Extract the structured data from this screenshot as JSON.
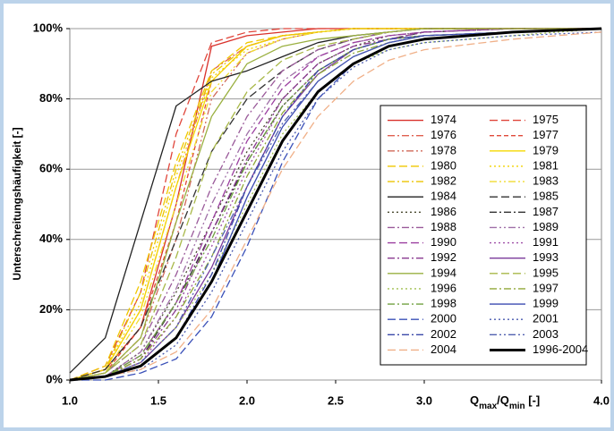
{
  "chart_data": {
    "type": "line",
    "ylabel": "Unterschreitungshäufigkeit [-]",
    "xlabel_parts": [
      "Q",
      "max",
      "/Q",
      "min",
      " [-]"
    ],
    "x": [
      1.0,
      1.2,
      1.4,
      1.6,
      1.8,
      2.0,
      2.2,
      2.4,
      2.6,
      2.8,
      3.0,
      3.5,
      4.0
    ],
    "xlim": [
      1.0,
      4.0
    ],
    "xticks": [
      {
        "value": 1.0,
        "label": "1.0"
      },
      {
        "value": 1.5,
        "label": "1.5"
      },
      {
        "value": 2.0,
        "label": "2.0"
      },
      {
        "value": 2.5,
        "label": "2.5"
      },
      {
        "value": 3.0,
        "label": "3.0"
      },
      {
        "value": 4.0,
        "label": "4.0"
      }
    ],
    "ylim": [
      0,
      100
    ],
    "yticks": [
      {
        "value": 0,
        "label": "0%"
      },
      {
        "value": 20,
        "label": "20%"
      },
      {
        "value": 40,
        "label": "40%"
      },
      {
        "value": 60,
        "label": "60%"
      },
      {
        "value": 80,
        "label": "80%"
      },
      {
        "value": 100,
        "label": "100%"
      }
    ],
    "grid": true,
    "legend": "right",
    "series": [
      {
        "name": "1974",
        "color": "#d9312b",
        "dash": "",
        "values": [
          0,
          3,
          15,
          50,
          95,
          98,
          99,
          100,
          100,
          100,
          100,
          100,
          100
        ]
      },
      {
        "name": "1975",
        "color": "#e0453a",
        "dash": "9,4",
        "values": [
          0,
          4,
          25,
          70,
          96,
          99,
          100,
          100,
          100,
          100,
          100,
          100,
          100
        ]
      },
      {
        "name": "1976",
        "color": "#e06050",
        "dash": "8,3,2,3",
        "values": [
          0,
          3,
          20,
          55,
          88,
          95,
          98,
          99,
          100,
          100,
          100,
          100,
          100
        ]
      },
      {
        "name": "1977",
        "color": "#e04a3a",
        "dash": "5,3",
        "values": [
          0,
          2,
          15,
          45,
          85,
          95,
          98,
          99,
          100,
          100,
          100,
          100,
          100
        ]
      },
      {
        "name": "1978",
        "color": "#d06a5a",
        "dash": "8,3,2,3,2,3",
        "values": [
          0,
          2,
          12,
          40,
          80,
          93,
          97,
          99,
          100,
          100,
          100,
          100,
          100
        ]
      },
      {
        "name": "1979",
        "color": "#f5d800",
        "dash": "",
        "values": [
          0,
          3,
          20,
          55,
          85,
          95,
          98,
          99,
          100,
          100,
          100,
          100,
          100
        ]
      },
      {
        "name": "1980",
        "color": "#f0c800",
        "dash": "9,4",
        "values": [
          0,
          4,
          28,
          62,
          88,
          96,
          98,
          99,
          100,
          100,
          100,
          100,
          100
        ]
      },
      {
        "name": "1981",
        "color": "#f2d400",
        "dash": "2,3",
        "values": [
          0,
          3,
          22,
          58,
          86,
          94,
          97,
          99,
          100,
          100,
          100,
          100,
          100
        ]
      },
      {
        "name": "1982",
        "color": "#ecc400",
        "dash": "8,3,2,3",
        "values": [
          0,
          3,
          25,
          60,
          87,
          95,
          98,
          99,
          100,
          100,
          100,
          100,
          100
        ]
      },
      {
        "name": "1983",
        "color": "#f0dc30",
        "dash": "8,3,2,3,2,3",
        "values": [
          0,
          2,
          18,
          50,
          82,
          93,
          97,
          99,
          100,
          100,
          100,
          100,
          100
        ]
      },
      {
        "name": "1984",
        "color": "#222222",
        "dash": "",
        "values": [
          2,
          12,
          45,
          78,
          85,
          88,
          92,
          96,
          98,
          99,
          100,
          100,
          100
        ]
      },
      {
        "name": "1985",
        "color": "#333333",
        "dash": "9,4",
        "values": [
          0,
          3,
          15,
          40,
          65,
          80,
          88,
          94,
          97,
          99,
          100,
          100,
          100
        ]
      },
      {
        "name": "1986",
        "color": "#4a4a30",
        "dash": "2,3",
        "values": [
          0,
          1,
          8,
          25,
          45,
          65,
          80,
          90,
          95,
          98,
          99,
          100,
          100
        ]
      },
      {
        "name": "1987",
        "color": "#333333",
        "dash": "8,3,2,3",
        "values": [
          0,
          1,
          6,
          22,
          42,
          62,
          78,
          88,
          94,
          97,
          99,
          100,
          100
        ]
      },
      {
        "name": "1988",
        "color": "#9a5a9a",
        "dash": "8,3,2,3",
        "values": [
          0,
          2,
          10,
          30,
          55,
          75,
          88,
          94,
          97,
          99,
          100,
          100,
          100
        ]
      },
      {
        "name": "1989",
        "color": "#a070a8",
        "dash": "8,3,2,3,2,3",
        "values": [
          0,
          1,
          8,
          26,
          50,
          70,
          85,
          92,
          96,
          98,
          99,
          100,
          100
        ]
      },
      {
        "name": "1990",
        "color": "#9b3fa0",
        "dash": "9,4",
        "values": [
          0,
          1,
          7,
          22,
          45,
          68,
          83,
          92,
          96,
          98,
          99,
          100,
          100
        ]
      },
      {
        "name": "1991",
        "color": "#a050a8",
        "dash": "2,3",
        "values": [
          0,
          1,
          5,
          18,
          38,
          60,
          78,
          88,
          94,
          97,
          98,
          99,
          100
        ]
      },
      {
        "name": "1992",
        "color": "#8a3a90",
        "dash": "8,3,2,3",
        "values": [
          0,
          1,
          6,
          20,
          42,
          63,
          80,
          90,
          95,
          97,
          99,
          100,
          100
        ]
      },
      {
        "name": "1993",
        "color": "#7a3a9a",
        "dash": "",
        "values": [
          0,
          1,
          5,
          15,
          32,
          55,
          75,
          87,
          94,
          97,
          98,
          99,
          100
        ]
      },
      {
        "name": "1994",
        "color": "#9ab040",
        "dash": "",
        "values": [
          0,
          2,
          12,
          45,
          75,
          90,
          95,
          97,
          98,
          99,
          100,
          100,
          100
        ]
      },
      {
        "name": "1995",
        "color": "#a8b848",
        "dash": "9,4",
        "values": [
          0,
          2,
          10,
          35,
          65,
          82,
          91,
          95,
          97,
          99,
          100,
          100,
          100
        ]
      },
      {
        "name": "1996",
        "color": "#a0c050",
        "dash": "2,3",
        "values": [
          0,
          1,
          5,
          15,
          30,
          50,
          70,
          82,
          90,
          94,
          96,
          98,
          100
        ]
      },
      {
        "name": "1997",
        "color": "#90a838",
        "dash": "8,3,2,3",
        "values": [
          0,
          1,
          6,
          18,
          35,
          58,
          76,
          87,
          93,
          96,
          98,
          99,
          100
        ]
      },
      {
        "name": "1998",
        "color": "#70a040",
        "dash": "8,3,2,3",
        "values": [
          0,
          1,
          7,
          22,
          40,
          62,
          78,
          88,
          94,
          97,
          98,
          99,
          100
        ]
      },
      {
        "name": "1999",
        "color": "#3a4ab0",
        "dash": "",
        "values": [
          0,
          1,
          4,
          12,
          28,
          52,
          72,
          85,
          92,
          96,
          98,
          99,
          100
        ]
      },
      {
        "name": "2000",
        "color": "#3a50b8",
        "dash": "9,4",
        "values": [
          0,
          0,
          2,
          6,
          18,
          38,
          62,
          80,
          90,
          95,
          97,
          99,
          100
        ]
      },
      {
        "name": "2001",
        "color": "#4a5ab0",
        "dash": "2,3",
        "values": [
          0,
          1,
          3,
          10,
          25,
          45,
          65,
          80,
          89,
          94,
          96,
          98,
          99
        ]
      },
      {
        "name": "2002",
        "color": "#3a48a8",
        "dash": "8,3,2,3",
        "values": [
          0,
          1,
          4,
          12,
          30,
          55,
          75,
          88,
          94,
          97,
          98,
          99,
          100
        ]
      },
      {
        "name": "2003",
        "color": "#5060b0",
        "dash": "8,3,2,3,2,3",
        "values": [
          0,
          1,
          5,
          15,
          35,
          55,
          73,
          85,
          92,
          96,
          98,
          99,
          100
        ]
      },
      {
        "name": "2004",
        "color": "#f0b088",
        "dash": "9,4",
        "values": [
          0,
          1,
          3,
          8,
          20,
          40,
          60,
          75,
          85,
          91,
          94,
          97,
          99
        ]
      },
      {
        "name": "1996-2004",
        "color": "#000000",
        "dash": "",
        "width": 3,
        "values": [
          0,
          1,
          4,
          12,
          28,
          48,
          68,
          82,
          90,
          95,
          97,
          99,
          100
        ]
      }
    ]
  }
}
